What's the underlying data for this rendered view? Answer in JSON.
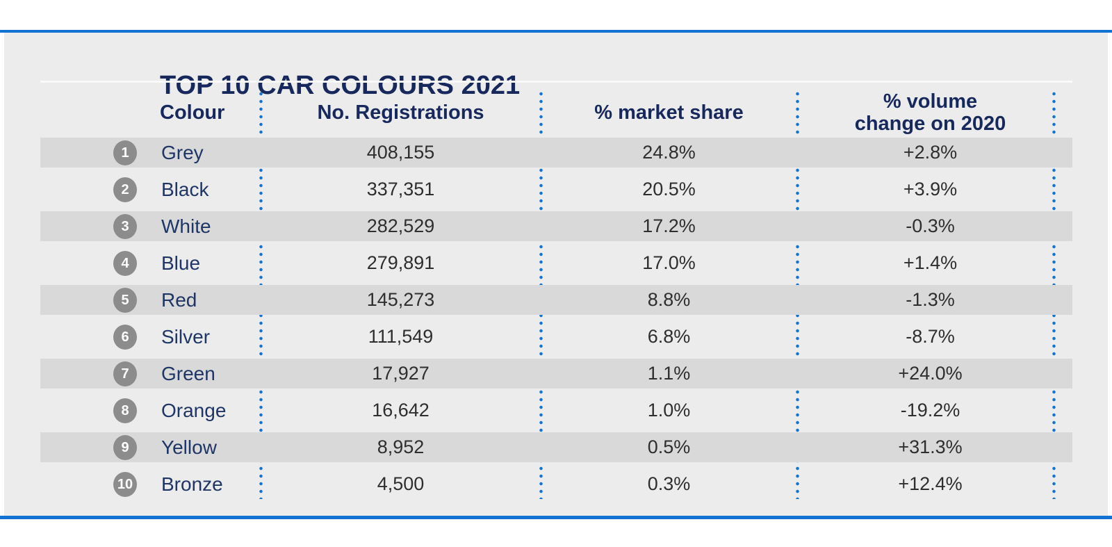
{
  "page": {
    "title": "TOP 10 CAR COLOURS 2021"
  },
  "table": {
    "columns": {
      "colour": "Colour",
      "registrations": "No. Registrations",
      "market_share": "% market share",
      "volume_line1": "% volume",
      "volume_line2": "change on 2020"
    },
    "rows": [
      {
        "rank": "1",
        "colour": "Grey",
        "registrations": "408,155",
        "market_share": "24.8%",
        "volume_change": "+2.8%"
      },
      {
        "rank": "2",
        "colour": "Black",
        "registrations": "337,351",
        "market_share": "20.5%",
        "volume_change": "+3.9%"
      },
      {
        "rank": "3",
        "colour": "White",
        "registrations": "282,529",
        "market_share": "17.2%",
        "volume_change": "-0.3%"
      },
      {
        "rank": "4",
        "colour": "Blue",
        "registrations": "279,891",
        "market_share": "17.0%",
        "volume_change": "+1.4%"
      },
      {
        "rank": "5",
        "colour": "Red",
        "registrations": "145,273",
        "market_share": "8.8%",
        "volume_change": "-1.3%"
      },
      {
        "rank": "6",
        "colour": "Silver",
        "registrations": "111,549",
        "market_share": "6.8%",
        "volume_change": "-8.7%"
      },
      {
        "rank": "7",
        "colour": "Green",
        "registrations": "17,927",
        "market_share": "1.1%",
        "volume_change": "+24.0%"
      },
      {
        "rank": "8",
        "colour": "Orange",
        "registrations": "16,642",
        "market_share": "1.0%",
        "volume_change": "-19.2%"
      },
      {
        "rank": "9",
        "colour": "Yellow",
        "registrations": "8,952",
        "market_share": "0.5%",
        "volume_change": "+31.3%"
      },
      {
        "rank": "10",
        "colour": "Bronze",
        "registrations": "4,500",
        "market_share": "0.3%",
        "volume_change": "+12.4%"
      }
    ]
  },
  "colors": {
    "accent_blue": "#1273d2",
    "heading_navy": "#17285c",
    "name_navy": "#1e3566",
    "panel_grey": "#ececec",
    "row_band_grey": "#d9d9d9",
    "badge_grey": "#8c8c8c",
    "value_grey": "#2e2e2e"
  },
  "chart_data": {
    "type": "table",
    "title": "TOP 10 CAR COLOURS 2021",
    "columns": [
      "Colour",
      "No. Registrations",
      "% market share",
      "% volume change on 2020"
    ],
    "rows": [
      {
        "rank": 1,
        "colour": "Grey",
        "registrations": 408155,
        "market_share_pct": 24.8,
        "volume_change_pct": 2.8
      },
      {
        "rank": 2,
        "colour": "Black",
        "registrations": 337351,
        "market_share_pct": 20.5,
        "volume_change_pct": 3.9
      },
      {
        "rank": 3,
        "colour": "White",
        "registrations": 282529,
        "market_share_pct": 17.2,
        "volume_change_pct": -0.3
      },
      {
        "rank": 4,
        "colour": "Blue",
        "registrations": 279891,
        "market_share_pct": 17.0,
        "volume_change_pct": 1.4
      },
      {
        "rank": 5,
        "colour": "Red",
        "registrations": 145273,
        "market_share_pct": 8.8,
        "volume_change_pct": -1.3
      },
      {
        "rank": 6,
        "colour": "Silver",
        "registrations": 111549,
        "market_share_pct": 6.8,
        "volume_change_pct": -8.7
      },
      {
        "rank": 7,
        "colour": "Green",
        "registrations": 17927,
        "market_share_pct": 1.1,
        "volume_change_pct": 24.0
      },
      {
        "rank": 8,
        "colour": "Orange",
        "registrations": 16642,
        "market_share_pct": 1.0,
        "volume_change_pct": -19.2
      },
      {
        "rank": 9,
        "colour": "Yellow",
        "registrations": 8952,
        "market_share_pct": 0.5,
        "volume_change_pct": 31.3
      },
      {
        "rank": 10,
        "colour": "Bronze",
        "registrations": 4500,
        "market_share_pct": 0.3,
        "volume_change_pct": 12.4
      }
    ]
  }
}
